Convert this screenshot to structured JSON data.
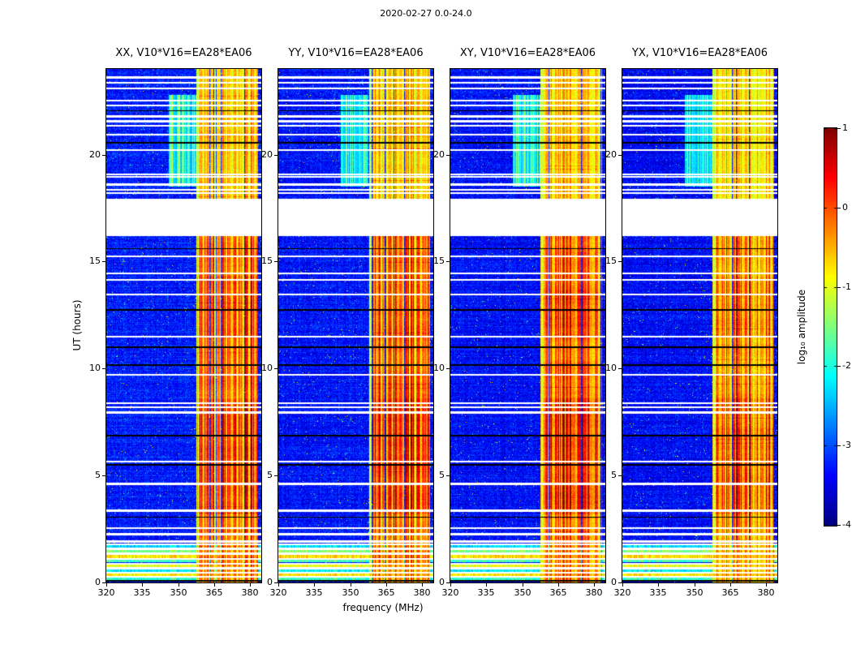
{
  "chart_data": {
    "type": "heatmap",
    "title": "2020-02-27 0.0-24.0",
    "xlabel": "frequency (MHz)",
    "ylabel": "UT (hours)",
    "xlim": [
      320,
      384.7
    ],
    "ylim": [
      0,
      24
    ],
    "xticks": [
      "320",
      "335",
      "350",
      "365",
      "380"
    ],
    "yticks": [
      "0",
      "5",
      "10",
      "15",
      "20"
    ],
    "colormap": "jet",
    "colorbar": {
      "label": "log₁₀ amplitude",
      "ticks": [
        "1",
        "0",
        "-1",
        "-2",
        "-3",
        "-4"
      ],
      "vmin": -4,
      "vmax": 1
    },
    "panels": [
      {
        "title": "XX, V10*V16=EA28*EA06",
        "seed": 11,
        "band_scale": 1.0,
        "bg_offset": 0.0,
        "streak": 1.0
      },
      {
        "title": "YY, V10*V16=EA28*EA06",
        "seed": 23,
        "band_scale": 1.05,
        "bg_offset": -0.05,
        "streak": 0.75
      },
      {
        "title": "XY, V10*V16=EA28*EA06",
        "seed": 37,
        "band_scale": 0.97,
        "bg_offset": -0.1,
        "streak": 0.85
      },
      {
        "title": "YX, V10*V16=EA28*EA06",
        "seed": 41,
        "band_scale": 0.93,
        "bg_offset": -0.12,
        "streak": 0.8
      }
    ],
    "features": {
      "background_level": -3.25,
      "band_base_level": -1.55,
      "band_mhz": [
        357.5,
        383.5
      ],
      "large_gaps_hours": [
        [
          16.2,
          17.95
        ]
      ],
      "white_line_hours": [
        0.26,
        0.46,
        0.66,
        0.88,
        1.1,
        1.34,
        1.58,
        1.78,
        1.92,
        2.25,
        2.55,
        3.35,
        4.6,
        5.65,
        7.95,
        8.18,
        8.38,
        9.7,
        11.5,
        13.45,
        14.15,
        14.45,
        15.25,
        18.2,
        18.35,
        18.6,
        18.95,
        19.06,
        20.2,
        20.92,
        21.35,
        21.56,
        21.78,
        22.3,
        22.52,
        23.1,
        23.35,
        23.6
      ],
      "black_line_hours": [
        0.06,
        1.95,
        3.05,
        5.5,
        6.85,
        10.15,
        11.0,
        12.75,
        15.6,
        20.55,
        22.05
      ],
      "time_profile": [
        {
          "t": [
            0,
            2.3
          ],
          "p": 0.8
        },
        {
          "t": [
            2.3,
            3.2
          ],
          "p": 0.85
        },
        {
          "t": [
            3.2,
            8.6
          ],
          "p": 1.05
        },
        {
          "t": [
            8.6,
            11.4
          ],
          "p": 0.9
        },
        {
          "t": [
            11.4,
            14.3
          ],
          "p": 0.97
        },
        {
          "t": [
            14.3,
            16.2
          ],
          "p": 0.9
        },
        {
          "t": [
            17.95,
            24
          ],
          "p": 0.6
        }
      ],
      "bottom_stripes": [
        {
          "t": [
            0.08,
            0.22
          ],
          "level": -2.0
        },
        {
          "t": [
            0.3,
            0.42
          ],
          "level": -0.9
        },
        {
          "t": [
            0.5,
            0.62
          ],
          "level": -2.3
        },
        {
          "t": [
            0.7,
            0.82
          ],
          "level": -1.1
        },
        {
          "t": [
            0.94,
            1.06
          ],
          "level": -1.9
        },
        {
          "t": [
            1.14,
            1.28
          ],
          "level": -0.85
        },
        {
          "t": [
            1.4,
            1.54
          ],
          "level": -1.6
        },
        {
          "t": [
            1.62,
            1.74
          ],
          "level": -2.4
        }
      ],
      "streak_region": {
        "mhz": [
          346,
          357.5
        ],
        "hours": [
          18.5,
          22.8
        ]
      }
    }
  }
}
